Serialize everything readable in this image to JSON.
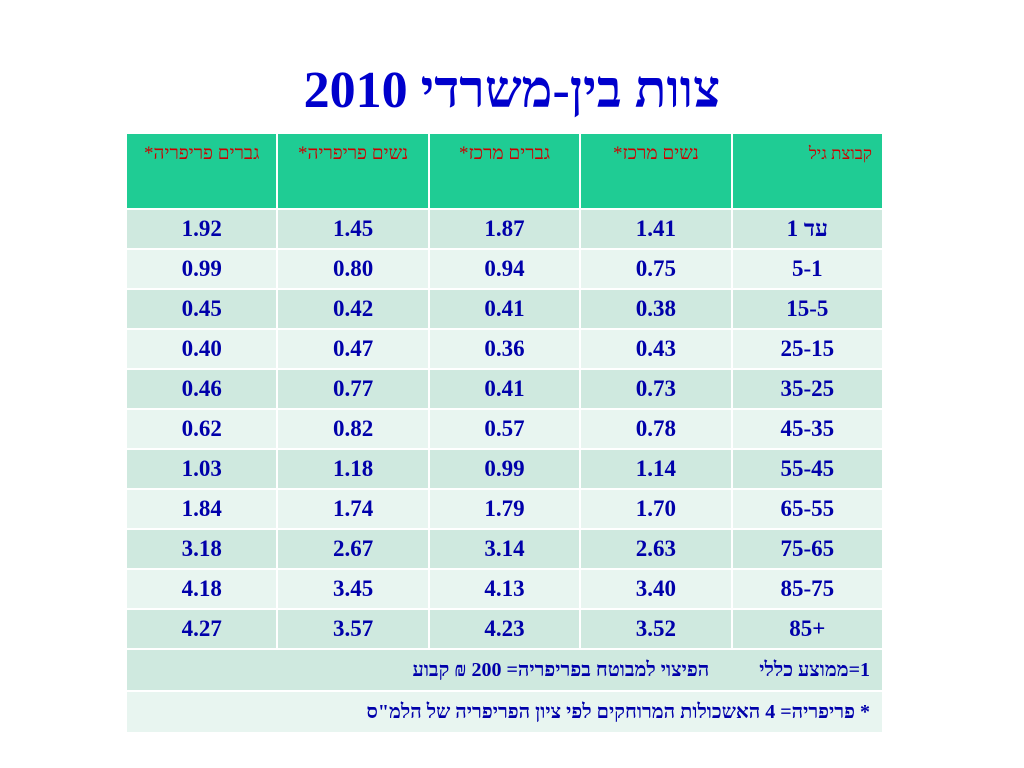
{
  "title": "צוות בין-משרדי 2010",
  "table": {
    "headers": [
      "קבוצת גיל",
      "נשים מרכז*",
      "גברים מרכז*",
      "נשים פריפריה*",
      "גברים פריפריה*"
    ],
    "rows": [
      [
        "עד 1",
        "1.41",
        "1.87",
        "1.45",
        "1.92"
      ],
      [
        "5-1",
        "0.75",
        "0.94",
        "0.80",
        "0.99"
      ],
      [
        "15-5",
        "0.38",
        "0.41",
        "0.42",
        "0.45"
      ],
      [
        "25-15",
        "0.43",
        "0.36",
        "0.47",
        "0.40"
      ],
      [
        "35-25",
        "0.73",
        "0.41",
        "0.77",
        "0.46"
      ],
      [
        "45-35",
        "0.78",
        "0.57",
        "0.82",
        "0.62"
      ],
      [
        "55-45",
        "1.14",
        "0.99",
        "1.18",
        "1.03"
      ],
      [
        "65-55",
        "1.70",
        "1.79",
        "1.74",
        "1.84"
      ],
      [
        "75-65",
        "2.63",
        "3.14",
        "2.67",
        "3.18"
      ],
      [
        "85-75",
        "3.40",
        "4.13",
        "3.45",
        "4.18"
      ],
      [
        "85+",
        "3.52",
        "4.23",
        "3.57",
        "4.27"
      ]
    ],
    "note1_a": "1=ממוצע כללי",
    "note1_b": "הפיצוי למבוטח בפריפריה= 200 ₪ קבוע",
    "note2": "* פריפריה= 4 האשכולות המרוחקים לפי ציון הפריפריה של הלמ\"ס"
  },
  "colors": {
    "title": "#0000cc",
    "header_bg": "#1fcc94",
    "header_text": "#cc0000",
    "row_odd": "#cfe9df",
    "row_even": "#e8f5f0",
    "cell_text": "#0000aa"
  }
}
